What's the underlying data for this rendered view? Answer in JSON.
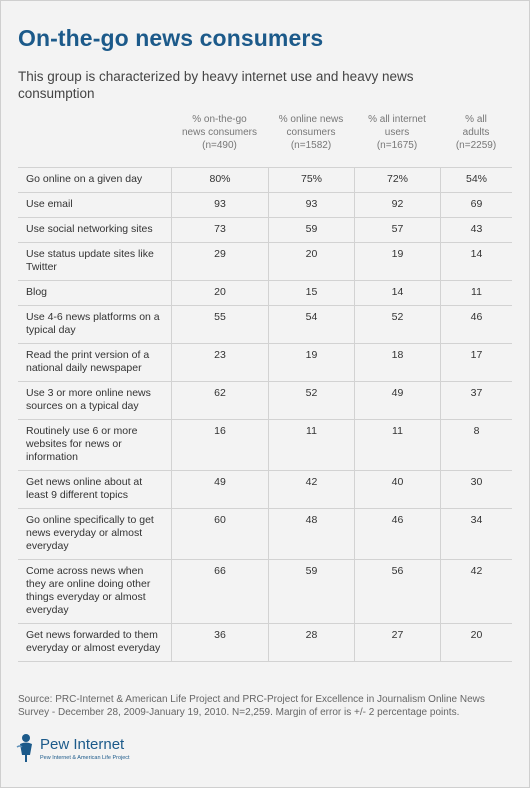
{
  "title": "On-the-go news consumers",
  "subtitle": "This group is characterized by heavy internet use and heavy news consumption",
  "columns": [
    {
      "line1": "% on-the-go",
      "line2": "news consumers",
      "line3": "(n=490)"
    },
    {
      "line1": "% online news",
      "line2": "consumers",
      "line3": "(n=1582)"
    },
    {
      "line1": "% all internet",
      "line2": "users",
      "line3": "(n=1675)"
    },
    {
      "line1": "% all",
      "line2": "adults",
      "line3": "(n=2259)"
    }
  ],
  "rows": [
    {
      "label": "Go online on a given day",
      "values": [
        "80%",
        "75%",
        "72%",
        "54%"
      ]
    },
    {
      "label": "Use email",
      "values": [
        "93",
        "93",
        "92",
        "69"
      ]
    },
    {
      "label": "Use social networking sites",
      "values": [
        "73",
        "59",
        "57",
        "43"
      ]
    },
    {
      "label": "Use status update sites like Twitter",
      "values": [
        "29",
        "20",
        "19",
        "14"
      ]
    },
    {
      "label": "Blog",
      "values": [
        "20",
        "15",
        "14",
        "11"
      ]
    },
    {
      "label": "Use 4-6 news platforms on a typical day",
      "values": [
        "55",
        "54",
        "52",
        "46"
      ]
    },
    {
      "label": "Read the print version of a national daily newspaper",
      "values": [
        "23",
        "19",
        "18",
        "17"
      ]
    },
    {
      "label": "Use 3 or more online news sources on a typical day",
      "values": [
        "62",
        "52",
        "49",
        "37"
      ]
    },
    {
      "label": "Routinely use 6 or more websites for news or information",
      "values": [
        "16",
        "11",
        "11",
        "8"
      ]
    },
    {
      "label": "Get news online about at least 9 different topics",
      "values": [
        "49",
        "42",
        "40",
        "30"
      ]
    },
    {
      "label": "Go online specifically to get news everyday or almost everyday",
      "values": [
        "60",
        "48",
        "46",
        "34"
      ]
    },
    {
      "label": "Come across news when they are online doing other things everyday or almost everyday",
      "values": [
        "66",
        "59",
        "56",
        "42"
      ]
    },
    {
      "label": "Get news forwarded to them everyday or almost everyday",
      "values": [
        "36",
        "28",
        "27",
        "20"
      ]
    }
  ],
  "source": "Source: PRC-Internet & American Life Project and PRC-Project for Excellence in Journalism Online News Survey - December 28, 2009-January 19, 2010. N=2,259. Margin of error is +/- 2 percentage points.",
  "logo": {
    "name": "Pew Internet",
    "tagline": "Pew Internet & American Life Project"
  },
  "colors": {
    "title": "#1c5a8a",
    "border": "#d2d2d2",
    "background": "#f3f3f3"
  }
}
